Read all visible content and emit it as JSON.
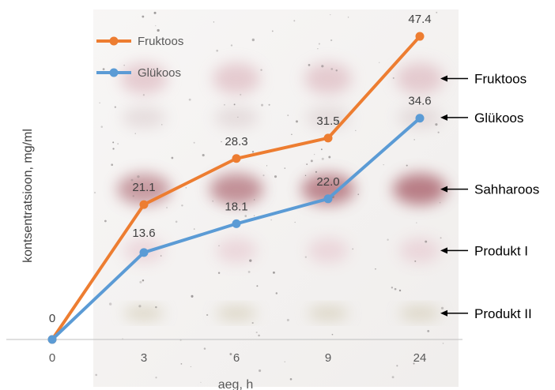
{
  "chart_data": {
    "type": "line",
    "title": "",
    "xlabel": "aeg, h",
    "ylabel": "kontsentratsioon, mg/ml",
    "categories": [
      "0",
      "3",
      "6",
      "9",
      "24"
    ],
    "ylim": [
      0,
      50
    ],
    "grid": false,
    "legend_position": "top-left",
    "series": [
      {
        "name": "Fruktoos",
        "color": "#ed7d31",
        "values": [
          0,
          21.1,
          28.3,
          31.5,
          47.4
        ],
        "labels": [
          "0",
          "21.1",
          "28.3",
          "31.5",
          "47.4"
        ]
      },
      {
        "name": "Glükoos",
        "color": "#5b9bd5",
        "values": [
          0,
          13.6,
          18.1,
          22.0,
          34.6
        ],
        "labels": [
          "",
          "13.6",
          "18.1",
          "22.0",
          "34.6"
        ]
      }
    ],
    "annotations": [
      {
        "text": "Fruktoos",
        "y": 40.8
      },
      {
        "text": "Glükoos",
        "y": 34.7
      },
      {
        "text": "Sahharoos",
        "y": 23.5
      },
      {
        "text": "Produkt I",
        "y": 13.9
      },
      {
        "text": "Produkt II",
        "y": 4.1
      }
    ]
  }
}
